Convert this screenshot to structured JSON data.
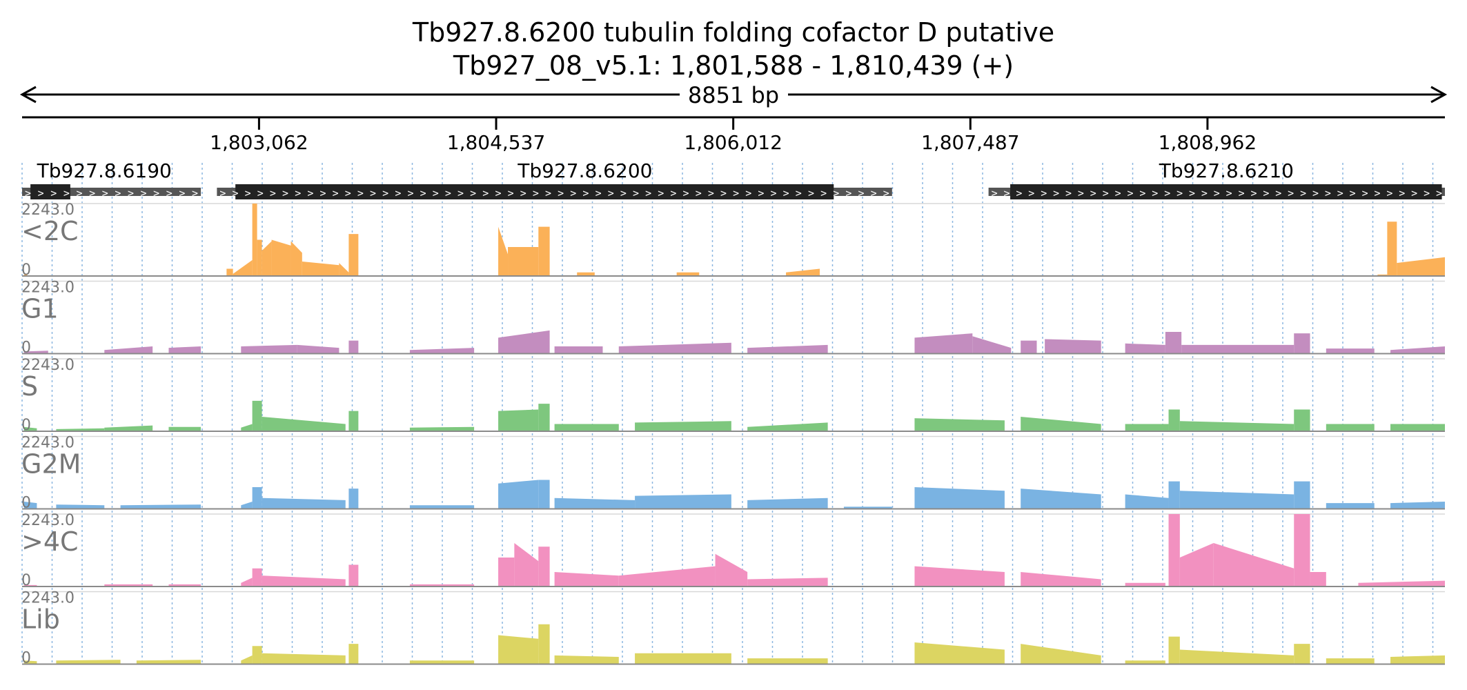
{
  "title": {
    "line1": "Tb927.8.6200  tubulin folding cofactor D  putative",
    "line2": "Tb927_08_v5.1: 1,801,588 - 1,810,439 (+)"
  },
  "chart_data": {
    "type": "area",
    "span_label": "8851 bp",
    "region": {
      "start": 1801588,
      "end": 1810439
    },
    "ticks": [
      {
        "pos": 1803062,
        "label": "1,803,062"
      },
      {
        "pos": 1804537,
        "label": "1,804,537"
      },
      {
        "pos": 1806012,
        "label": "1,806,012"
      },
      {
        "pos": 1807487,
        "label": "1,807,487"
      },
      {
        "pos": 1808962,
        "label": "1,808,962"
      }
    ],
    "genes": [
      {
        "name": "Tb927.8.6190",
        "start": 1801588,
        "end": 1802700,
        "cds_start": 1801640,
        "cds_end": 1801888,
        "label_pos": 1802100
      },
      {
        "name": "Tb927.8.6200",
        "start": 1802800,
        "end": 1807000,
        "cds_start": 1802915,
        "cds_end": 1806637,
        "label_pos": 1805090
      },
      {
        "name": "Tb927.8.6210",
        "start": 1807600,
        "end": 1810439,
        "cds_start": 1807735,
        "cds_end": 1810420,
        "label_pos": 1809080
      }
    ],
    "y_max_label": "2243.0",
    "y_min_label": "0",
    "tracks": [
      {
        "name": "<2C",
        "color": "#fbb158",
        "segments": [
          [
            1801600,
            1801620,
            0.02,
            0.02
          ],
          [
            1802860,
            1802900,
            0.1,
            0.1
          ],
          [
            1802900,
            1803020,
            0.03,
            0.22
          ],
          [
            1803020,
            1803050,
            1.0,
            1.0
          ],
          [
            1803050,
            1803080,
            0.5,
            0.5
          ],
          [
            1803080,
            1803140,
            0.35,
            0.48
          ],
          [
            1803140,
            1803260,
            0.5,
            0.42
          ],
          [
            1803260,
            1803330,
            0.48,
            0.32
          ],
          [
            1803330,
            1803560,
            0.2,
            0.15
          ],
          [
            1803560,
            1803620,
            0.18,
            0.05
          ],
          [
            1803620,
            1803680,
            0.58,
            0.58
          ],
          [
            1804550,
            1804610,
            0.68,
            0.3
          ],
          [
            1804610,
            1804800,
            0.4,
            0.4
          ],
          [
            1804800,
            1804870,
            0.68,
            0.68
          ],
          [
            1805040,
            1805150,
            0.05,
            0.05
          ],
          [
            1805660,
            1805800,
            0.05,
            0.05
          ],
          [
            1806340,
            1806550,
            0.05,
            0.1
          ],
          [
            1810020,
            1810080,
            0.02,
            0.02
          ],
          [
            1810080,
            1810140,
            0.75,
            0.75
          ],
          [
            1810140,
            1810439,
            0.18,
            0.26
          ]
        ]
      },
      {
        "name": "G1",
        "color": "#c38dbf",
        "segments": [
          [
            1801600,
            1801750,
            0.03,
            0.04
          ],
          [
            1802100,
            1802400,
            0.05,
            0.1
          ],
          [
            1802500,
            1802700,
            0.08,
            0.1
          ],
          [
            1802950,
            1803300,
            0.1,
            0.12
          ],
          [
            1803300,
            1803560,
            0.12,
            0.08
          ],
          [
            1803620,
            1803680,
            0.18,
            0.18
          ],
          [
            1804000,
            1804400,
            0.05,
            0.08
          ],
          [
            1804550,
            1804870,
            0.22,
            0.32
          ],
          [
            1804900,
            1805200,
            0.1,
            0.1
          ],
          [
            1805300,
            1806000,
            0.1,
            0.15
          ],
          [
            1806100,
            1806600,
            0.08,
            0.12
          ],
          [
            1807140,
            1807500,
            0.22,
            0.28
          ],
          [
            1807500,
            1807740,
            0.24,
            0.08
          ],
          [
            1807800,
            1807900,
            0.18,
            0.18
          ],
          [
            1807950,
            1808300,
            0.2,
            0.18
          ],
          [
            1808450,
            1808700,
            0.14,
            0.12
          ],
          [
            1808700,
            1808800,
            0.3,
            0.3
          ],
          [
            1808800,
            1809500,
            0.12,
            0.12
          ],
          [
            1809500,
            1809600,
            0.28,
            0.28
          ],
          [
            1809700,
            1810000,
            0.07,
            0.07
          ],
          [
            1810100,
            1810439,
            0.05,
            0.1
          ]
        ]
      },
      {
        "name": "S",
        "color": "#7ec77e",
        "segments": [
          [
            1801600,
            1801680,
            0.06,
            0.04
          ],
          [
            1801800,
            1802100,
            0.03,
            0.04
          ],
          [
            1802100,
            1802400,
            0.05,
            0.08
          ],
          [
            1802500,
            1802700,
            0.06,
            0.06
          ],
          [
            1802950,
            1803020,
            0.05,
            0.1
          ],
          [
            1803020,
            1803080,
            0.42,
            0.42
          ],
          [
            1803080,
            1803600,
            0.2,
            0.1
          ],
          [
            1803620,
            1803680,
            0.28,
            0.28
          ],
          [
            1804000,
            1804400,
            0.05,
            0.06
          ],
          [
            1804550,
            1804800,
            0.28,
            0.3
          ],
          [
            1804800,
            1804870,
            0.38,
            0.38
          ],
          [
            1804900,
            1805300,
            0.1,
            0.1
          ],
          [
            1805400,
            1806000,
            0.12,
            0.14
          ],
          [
            1806100,
            1806600,
            0.06,
            0.12
          ],
          [
            1807140,
            1807700,
            0.18,
            0.15
          ],
          [
            1807800,
            1808300,
            0.2,
            0.1
          ],
          [
            1808450,
            1808720,
            0.1,
            0.1
          ],
          [
            1808720,
            1808790,
            0.3,
            0.3
          ],
          [
            1808790,
            1809500,
            0.14,
            0.1
          ],
          [
            1809500,
            1809600,
            0.3,
            0.3
          ],
          [
            1809700,
            1810000,
            0.1,
            0.1
          ],
          [
            1810100,
            1810439,
            0.1,
            0.1
          ]
        ]
      },
      {
        "name": "G2M",
        "color": "#7ab3e2",
        "segments": [
          [
            1801600,
            1801680,
            0.1,
            0.08
          ],
          [
            1801800,
            1802100,
            0.06,
            0.05
          ],
          [
            1802200,
            1802700,
            0.05,
            0.06
          ],
          [
            1802950,
            1803020,
            0.05,
            0.1
          ],
          [
            1803020,
            1803080,
            0.3,
            0.3
          ],
          [
            1803080,
            1803600,
            0.15,
            0.12
          ],
          [
            1803620,
            1803680,
            0.28,
            0.28
          ],
          [
            1804000,
            1804400,
            0.05,
            0.05
          ],
          [
            1804550,
            1804800,
            0.35,
            0.4
          ],
          [
            1804800,
            1804870,
            0.4,
            0.4
          ],
          [
            1804900,
            1805400,
            0.15,
            0.12
          ],
          [
            1805400,
            1806000,
            0.18,
            0.2
          ],
          [
            1806100,
            1806600,
            0.12,
            0.15
          ],
          [
            1806700,
            1807000,
            0.03,
            0.03
          ],
          [
            1807140,
            1807700,
            0.3,
            0.25
          ],
          [
            1807800,
            1808300,
            0.28,
            0.2
          ],
          [
            1808450,
            1808720,
            0.2,
            0.15
          ],
          [
            1808720,
            1808790,
            0.38,
            0.38
          ],
          [
            1808790,
            1809500,
            0.25,
            0.2
          ],
          [
            1809500,
            1809600,
            0.38,
            0.38
          ],
          [
            1809700,
            1810000,
            0.08,
            0.08
          ],
          [
            1810100,
            1810439,
            0.08,
            0.1
          ]
        ]
      },
      {
        "name": ">4C",
        "color": "#f291c0",
        "segments": [
          [
            1801600,
            1801680,
            0.02,
            0.02
          ],
          [
            1802100,
            1802400,
            0.03,
            0.03
          ],
          [
            1802500,
            1802700,
            0.03,
            0.03
          ],
          [
            1802950,
            1803020,
            0.05,
            0.12
          ],
          [
            1803020,
            1803080,
            0.25,
            0.25
          ],
          [
            1803080,
            1803600,
            0.15,
            0.1
          ],
          [
            1803620,
            1803680,
            0.3,
            0.3
          ],
          [
            1804000,
            1804400,
            0.03,
            0.03
          ],
          [
            1804550,
            1804650,
            0.4,
            0.4
          ],
          [
            1804650,
            1804800,
            0.6,
            0.35
          ],
          [
            1804800,
            1804870,
            0.55,
            0.55
          ],
          [
            1804900,
            1805300,
            0.2,
            0.15
          ],
          [
            1805300,
            1805900,
            0.15,
            0.28
          ],
          [
            1805900,
            1806100,
            0.45,
            0.2
          ],
          [
            1806100,
            1806600,
            0.1,
            0.12
          ],
          [
            1807140,
            1807700,
            0.28,
            0.2
          ],
          [
            1807800,
            1808300,
            0.2,
            0.1
          ],
          [
            1808450,
            1808700,
            0.05,
            0.05
          ],
          [
            1808720,
            1808790,
            1.0,
            1.0
          ],
          [
            1808790,
            1809000,
            0.4,
            0.6
          ],
          [
            1809000,
            1809500,
            0.6,
            0.25
          ],
          [
            1809500,
            1809600,
            1.0,
            1.0
          ],
          [
            1809600,
            1809700,
            0.2,
            0.2
          ],
          [
            1809900,
            1810439,
            0.05,
            0.08
          ]
        ]
      },
      {
        "name": "Lib",
        "color": "#dcd562",
        "segments": [
          [
            1801600,
            1801680,
            0.05,
            0.04
          ],
          [
            1801800,
            1802200,
            0.05,
            0.06
          ],
          [
            1802300,
            1802700,
            0.05,
            0.06
          ],
          [
            1802950,
            1803020,
            0.05,
            0.12
          ],
          [
            1803020,
            1803080,
            0.25,
            0.25
          ],
          [
            1803080,
            1803600,
            0.15,
            0.12
          ],
          [
            1803620,
            1803680,
            0.28,
            0.28
          ],
          [
            1804000,
            1804400,
            0.05,
            0.05
          ],
          [
            1804550,
            1804800,
            0.4,
            0.35
          ],
          [
            1804800,
            1804870,
            0.55,
            0.55
          ],
          [
            1804900,
            1805300,
            0.12,
            0.1
          ],
          [
            1805400,
            1806000,
            0.15,
            0.15
          ],
          [
            1806100,
            1806600,
            0.08,
            0.08
          ],
          [
            1807140,
            1807700,
            0.3,
            0.2
          ],
          [
            1807800,
            1808300,
            0.28,
            0.12
          ],
          [
            1808450,
            1808700,
            0.05,
            0.05
          ],
          [
            1808720,
            1808790,
            0.38,
            0.38
          ],
          [
            1808790,
            1809500,
            0.2,
            0.12
          ],
          [
            1809500,
            1809600,
            0.28,
            0.28
          ],
          [
            1809700,
            1810000,
            0.08,
            0.08
          ],
          [
            1810100,
            1810439,
            0.1,
            0.12
          ]
        ]
      }
    ],
    "grid": true
  }
}
